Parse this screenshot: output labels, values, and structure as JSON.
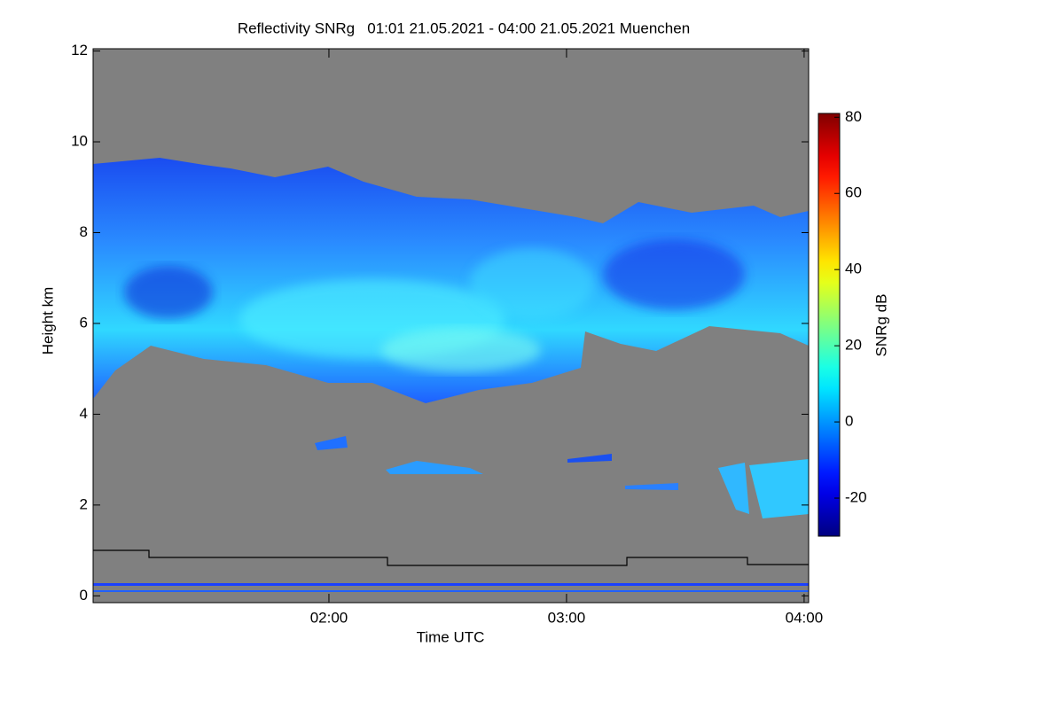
{
  "chart_data": {
    "type": "heatmap",
    "title": "Reflectivity SNRg   01:01 21.05.2021 - 04:00 21.05.2021 Muenchen",
    "x_label": "Time UTC",
    "y_label": "Height km",
    "xlim": [
      1.0075,
      4.019
    ],
    "xticks": [
      {
        "value": 2,
        "label": "02:00"
      },
      {
        "value": 3,
        "label": "03:00"
      },
      {
        "value": 4,
        "label": "04:00"
      }
    ],
    "ylim": [
      -0.15,
      12.05
    ],
    "yticks": [
      0,
      2,
      4,
      6,
      8,
      10,
      12
    ],
    "background": "#808080",
    "colorbar": {
      "label": "SNRg dB",
      "lim": [
        -30,
        81
      ],
      "ticks": [
        -20,
        0,
        20,
        40,
        60,
        80
      ],
      "colormap": "jet"
    }
  }
}
